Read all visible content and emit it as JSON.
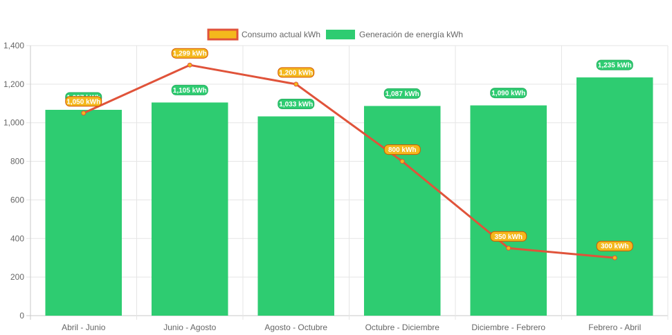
{
  "chart_data": {
    "type": "bar",
    "categories": [
      "Abril - Junio",
      "Junio - Agosto",
      "Agosto - Octubre",
      "Octubre - Diciembre",
      "Diciembre - Febrero",
      "Febrero - Abril"
    ],
    "series": [
      {
        "name": "Consumo actual kWh",
        "type": "line",
        "values": [
          1050,
          1299,
          1200,
          800,
          350,
          300
        ],
        "labels": [
          "1,050 kWh",
          "1,299 kWh",
          "1,200 kWh",
          "800 kWh",
          "350 kWh",
          "300 kWh"
        ],
        "color": "#e0533a",
        "label_color": "#f4b81c"
      },
      {
        "name": "Generación de energía kWh",
        "type": "bar",
        "values": [
          1067,
          1105,
          1033,
          1087,
          1090,
          1235
        ],
        "labels": [
          "1,067 kWh",
          "1,105 kWh",
          "1,033 kWh",
          "1,087 kWh",
          "1,090 kWh",
          "1,235 kWh"
        ],
        "color": "#2ecc71",
        "label_color": "#2ecc71"
      }
    ],
    "y_ticks": [
      "0",
      "200",
      "400",
      "600",
      "800",
      "1,000",
      "1,200",
      "1,400"
    ],
    "ylim": [
      0,
      1400
    ],
    "grid": true,
    "legend_position": "top-center",
    "title": "",
    "xlabel": "",
    "ylabel": ""
  }
}
